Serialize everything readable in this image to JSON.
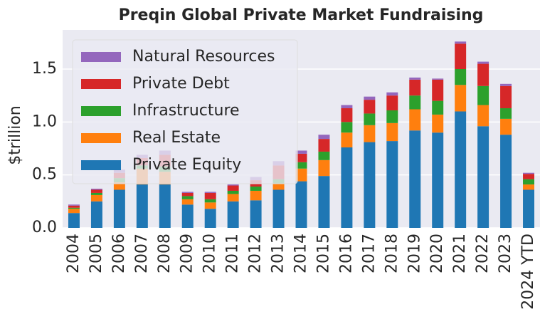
{
  "chart_data": {
    "type": "bar",
    "stacked": true,
    "title": "Preqin Global Private Market Fundraising",
    "ylabel": "$trillion",
    "categories": [
      "2004",
      "2005",
      "2006",
      "2007",
      "2008",
      "2009",
      "2010",
      "2011",
      "2012",
      "2013",
      "2014",
      "2015",
      "2016",
      "2017",
      "2018",
      "2019",
      "2020",
      "2021",
      "2022",
      "2023",
      "2024 YTD"
    ],
    "series": [
      {
        "name": "Private Equity",
        "color": "#1f77b4",
        "values": [
          0.14,
          0.25,
          0.36,
          0.41,
          0.41,
          0.22,
          0.18,
          0.25,
          0.26,
          0.36,
          0.44,
          0.49,
          0.76,
          0.81,
          0.82,
          0.92,
          0.9,
          1.1,
          0.96,
          0.88,
          0.36
        ]
      },
      {
        "name": "Real Estate",
        "color": "#ff7f0e",
        "values": [
          0.04,
          0.06,
          0.07,
          0.15,
          0.12,
          0.05,
          0.06,
          0.07,
          0.09,
          0.06,
          0.12,
          0.15,
          0.14,
          0.16,
          0.17,
          0.2,
          0.17,
          0.25,
          0.2,
          0.15,
          0.05
        ]
      },
      {
        "name": "Infrastructure",
        "color": "#2ca02c",
        "values": [
          0.01,
          0.02,
          0.04,
          0.03,
          0.05,
          0.03,
          0.03,
          0.03,
          0.04,
          0.04,
          0.06,
          0.08,
          0.1,
          0.11,
          0.12,
          0.13,
          0.13,
          0.15,
          0.18,
          0.1,
          0.05
        ]
      },
      {
        "name": "Private Debt",
        "color": "#d62728",
        "values": [
          0.02,
          0.03,
          0.05,
          0.07,
          0.11,
          0.03,
          0.06,
          0.05,
          0.06,
          0.13,
          0.08,
          0.12,
          0.13,
          0.13,
          0.14,
          0.15,
          0.2,
          0.24,
          0.21,
          0.21,
          0.05
        ]
      },
      {
        "name": "Natural Resources",
        "color": "#9467bd",
        "values": [
          0.01,
          0.01,
          0.03,
          0.03,
          0.04,
          0.01,
          0.01,
          0.01,
          0.03,
          0.04,
          0.03,
          0.04,
          0.03,
          0.03,
          0.03,
          0.02,
          0.01,
          0.02,
          0.02,
          0.02,
          0.01
        ]
      }
    ],
    "ylim": [
      0,
      1.87
    ],
    "yticks": [
      {
        "value": 0,
        "label": "0.0"
      },
      {
        "value": 0.5,
        "label": "0.5"
      },
      {
        "value": 1,
        "label": "1.0"
      },
      {
        "value": 1.5,
        "label": "1.5"
      }
    ],
    "grid": true,
    "legend": "upper left"
  }
}
